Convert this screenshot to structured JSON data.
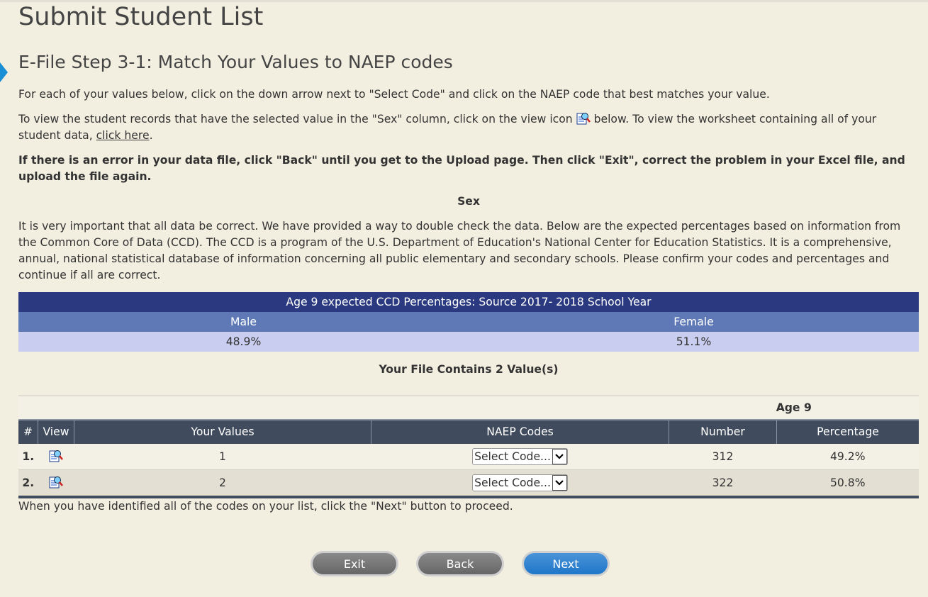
{
  "page_title": "Submit Student List",
  "step_title": "E-File Step 3-1: Match Your Values to NAEP codes",
  "instructions": {
    "p1": "For each of your values below, click on the down arrow next to \"Select Code\" and click on the NAEP code that best matches your value.",
    "p2_before": "To view the student records that have the selected value in the \"Sex\" column, click on the view icon ",
    "p2_after": " below. To view the worksheet containing all of your student data, ",
    "p2_link": "click here",
    "p2_end": ".",
    "warning": "If there is an error in your data file, click \"Back\" until you get to the Upload page. Then click \"Exit\", correct the problem in your Excel file, and upload the file again.",
    "section": "Sex",
    "p3": "It is very important that all data be correct. We have provided a way to double check the data. Below are the expected percentages based on information from the Common Core of Data (CCD). The CCD is a program of the U.S. Department of Education's National Center for Education Statistics. It is a comprehensive, annual, national statistical database of information concerning all public elementary and secondary schools. Please confirm your codes and percentages and continue if all are correct."
  },
  "ccd_table": {
    "title": "Age 9 expected CCD Percentages: Source 2017- 2018 School Year",
    "headers": [
      "Male",
      "Female"
    ],
    "values": [
      "48.9%",
      "51.1%"
    ]
  },
  "file_summary": "Your File Contains 2 Value(s)",
  "values_table": {
    "group_label": "Age 9",
    "headers": [
      "#",
      "View",
      "Your Values",
      "NAEP Codes",
      "Number",
      "Percentage"
    ],
    "rows": [
      {
        "num": "1.",
        "value": "1",
        "code": "Select Code...",
        "number": "312",
        "percentage": "49.2%"
      },
      {
        "num": "2.",
        "value": "2",
        "code": "Select Code...",
        "number": "322",
        "percentage": "50.8%"
      }
    ]
  },
  "footer_note": "When you have identified all of the codes on your list, click the \"Next\" button to proceed.",
  "buttons": {
    "exit": "Exit",
    "back": "Back",
    "next": "Next"
  },
  "colors": {
    "accent": "#1f76c9",
    "header_dark": "#2b3a80",
    "header_mid": "#5f79b6",
    "table_header": "#404c5e"
  }
}
